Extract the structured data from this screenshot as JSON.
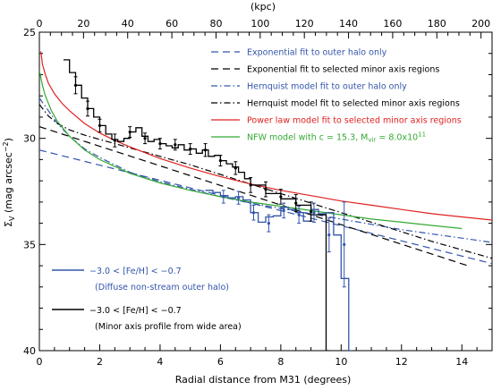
{
  "chart_data": {
    "type": "line",
    "x_unit": "degrees",
    "xlim": [
      0,
      15
    ],
    "ylim": [
      25,
      40
    ],
    "y_inverted": true,
    "top_axis": {
      "label": "(kpc)",
      "ticks": [
        "0",
        "20",
        "40",
        "60",
        "80",
        "100",
        "120",
        "140",
        "160",
        "180",
        "200"
      ],
      "lim": [
        0,
        205
      ]
    },
    "xlabel": "Radial distance from M31 (degrees)",
    "ylabel": "Σ_V (mag arcsec^-2)",
    "ylabel_parts": {
      "base": "Σ",
      "sub": "V",
      "mid": " (mag arcsec",
      "sup": "−2",
      "end": ")"
    },
    "x_ticks": [
      "0",
      "2",
      "4",
      "6",
      "8",
      "10",
      "12",
      "14"
    ],
    "y_ticks": [
      "25",
      "30",
      "35",
      "40"
    ],
    "grid": false,
    "legend_placement": "top-right",
    "legend": [
      {
        "text": "Exponential fit to outer halo only",
        "color": "#3355aa",
        "dash": "8,5"
      },
      {
        "text": "Exponential fit to selected minor axis regions",
        "color": "#000000",
        "dash": "8,5"
      },
      {
        "text": "Hernquist model fit to outer halo only",
        "color": "#3355aa",
        "dash": "7,3,1.5,3"
      },
      {
        "text": "Hernquist model fit to selected minor axis regions",
        "color": "#000000",
        "dash": "7,3,1.5,3"
      },
      {
        "text": "Power law model fit to selected minor axis regions",
        "color": "#e02020",
        "dash": ""
      },
      {
        "text_parts": [
          "NFW model with c = 15.3, M",
          "vir",
          " = 8.0x10",
          "11"
        ],
        "color": "#33aa33",
        "dash": ""
      }
    ],
    "lower_legend": [
      {
        "text": "−3.0 < [Fe/H] < −0.7",
        "sub": "(Diffuse non-stream outer halo)",
        "color": "#3355aa"
      },
      {
        "text": "−3.0 < [Fe/H] < −0.7",
        "sub": "(Minor axis profile from wide area)",
        "color": "#000000"
      }
    ],
    "series": [
      {
        "kind": "curve",
        "color": "#3355aa",
        "dash": "8,5",
        "x": [
          0,
          15
        ],
        "y": [
          30.55,
          35.9
        ]
      },
      {
        "kind": "curve",
        "color": "#000000",
        "dash": "8,5",
        "x": [
          0,
          14.2
        ],
        "y": [
          29.45,
          36.0
        ]
      },
      {
        "kind": "curve",
        "color": "#3355aa",
        "dash": "7,3,1.5,3",
        "x": [
          0,
          0.3,
          0.6,
          1,
          1.5,
          2,
          3,
          4,
          5,
          6,
          7,
          8,
          9,
          10,
          11,
          12,
          13,
          14,
          15
        ],
        "y": [
          28.1,
          28.7,
          29.3,
          29.9,
          30.5,
          30.9,
          31.6,
          32.05,
          32.4,
          32.75,
          33.05,
          33.3,
          33.55,
          33.8,
          34.05,
          34.3,
          34.5,
          34.7,
          34.9
        ]
      },
      {
        "kind": "curve",
        "color": "#000000",
        "dash": "7,3,1.5,3",
        "x": [
          0,
          0.3,
          0.6,
          1,
          1.5,
          2,
          3,
          4,
          5,
          6,
          7,
          8,
          9,
          10,
          11,
          12,
          13,
          14,
          15
        ],
        "y": [
          28.4,
          28.95,
          29.3,
          29.6,
          29.85,
          30.05,
          30.45,
          30.85,
          31.25,
          31.7,
          32.15,
          32.6,
          33.05,
          33.5,
          33.95,
          34.4,
          34.85,
          35.25,
          35.65
        ]
      },
      {
        "kind": "curve",
        "color": "#e02020",
        "dash": "",
        "x": [
          0.05,
          0.1,
          0.2,
          0.3,
          0.5,
          0.75,
          1,
          1.5,
          2,
          2.5,
          3,
          4,
          5,
          6,
          7,
          8,
          9,
          10,
          11,
          12,
          13,
          14,
          15
        ],
        "y": [
          25.9,
          26.5,
          27.0,
          27.4,
          27.9,
          28.35,
          28.7,
          29.3,
          29.75,
          30.1,
          30.4,
          30.95,
          31.4,
          31.8,
          32.15,
          32.45,
          32.7,
          32.95,
          33.15,
          33.35,
          33.55,
          33.7,
          33.85
        ]
      },
      {
        "kind": "curve",
        "color": "#33aa33",
        "dash": "",
        "x": [
          0,
          0.1,
          0.2,
          0.4,
          0.6,
          1,
          1.5,
          2,
          3,
          4,
          5,
          6,
          7,
          8,
          9,
          10,
          11,
          12,
          13,
          14
        ],
        "y": [
          26.8,
          27.5,
          28.0,
          28.7,
          29.2,
          29.9,
          30.55,
          31.0,
          31.65,
          32.1,
          32.45,
          32.75,
          33.0,
          33.2,
          33.4,
          33.6,
          33.8,
          33.95,
          34.1,
          34.25
        ]
      },
      {
        "kind": "step",
        "color": "#000000",
        "x": [
          0.8,
          1.0,
          1.2,
          1.4,
          1.6,
          1.8,
          2.0,
          2.2,
          2.4,
          2.6,
          2.8,
          3.0,
          3.2,
          3.4,
          3.6,
          3.8,
          4.0,
          4.2,
          4.4,
          4.6,
          4.8,
          5.0,
          5.2,
          5.4,
          5.6,
          5.8,
          6.0,
          6.2,
          6.4,
          6.6,
          6.8,
          7.0,
          7.5,
          8.0,
          8.5,
          9.0,
          9.5
        ],
        "y": [
          26.3,
          26.9,
          27.5,
          28.1,
          28.6,
          29.0,
          29.4,
          29.8,
          30.05,
          30.15,
          30.0,
          29.7,
          29.5,
          29.9,
          30.15,
          30.05,
          30.25,
          30.35,
          30.45,
          30.3,
          30.55,
          30.5,
          30.7,
          30.55,
          30.85,
          30.8,
          31.05,
          31.2,
          31.35,
          31.6,
          31.9,
          32.2,
          32.6,
          32.85,
          33.15,
          33.6,
          40.0
        ]
      },
      {
        "kind": "step",
        "color": "#3355aa",
        "x": [
          5.5,
          5.75,
          6.0,
          6.25,
          6.5,
          6.75,
          7.0,
          7.25,
          7.5,
          7.75,
          8.0,
          8.25,
          8.5,
          8.75,
          9.0,
          9.25,
          9.5,
          9.75,
          10.0,
          10.25
        ],
        "y": [
          32.45,
          32.55,
          32.7,
          32.8,
          32.75,
          32.9,
          33.5,
          33.95,
          33.7,
          33.65,
          33.25,
          33.35,
          33.5,
          33.9,
          33.35,
          33.55,
          33.5,
          34.55,
          36.6,
          40.0
        ]
      },
      {
        "kind": "points",
        "color": "#000000",
        "x": [
          1.2,
          1.6,
          2.0,
          2.5,
          3.0,
          3.5,
          4.0,
          4.5,
          5.0,
          5.5,
          6.0,
          6.5,
          7.0,
          7.5,
          8.0,
          8.5,
          9.0
        ],
        "y": [
          27.5,
          28.6,
          29.4,
          30.1,
          29.7,
          30.0,
          30.25,
          30.3,
          30.5,
          30.55,
          31.05,
          31.4,
          32.2,
          32.4,
          32.75,
          33.05,
          33.45
        ],
        "err": [
          0.4,
          0.35,
          0.3,
          0.3,
          0.25,
          0.25,
          0.25,
          0.25,
          0.25,
          0.3,
          0.25,
          0.3,
          0.35,
          0.35,
          0.35,
          0.4,
          0.45
        ]
      },
      {
        "kind": "points",
        "color": "#3355aa",
        "x": [
          6.1,
          6.6,
          7.1,
          7.6,
          8.1,
          8.6,
          9.1,
          9.6,
          10.1
        ],
        "y": [
          32.75,
          32.8,
          33.5,
          34.0,
          33.4,
          33.6,
          33.5,
          34.55,
          35.0
        ],
        "err": [
          0.3,
          0.3,
          0.35,
          0.4,
          0.35,
          0.4,
          0.45,
          0.8,
          2.0
        ]
      }
    ]
  }
}
